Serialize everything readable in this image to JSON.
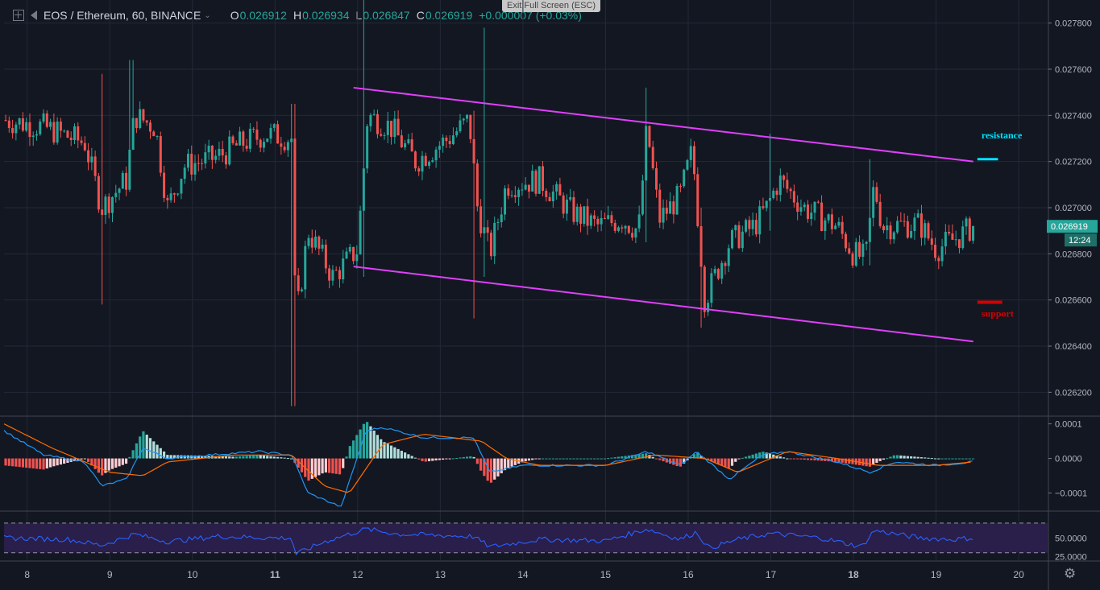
{
  "header": {
    "symbol": "EOS / Ethereum, 60, BINANCE",
    "open_label": "O",
    "open": "0.026912",
    "high_label": "H",
    "high": "0.026934",
    "low_label": "L",
    "low": "0.026847",
    "close_label": "C",
    "close": "0.026919",
    "change": "+0.000007 (+0.03%)"
  },
  "exit_fullscreen": "Exit Full Screen (ESC)",
  "icons": {
    "settings": "gear-icon",
    "add": "plus-square-icon",
    "collapse": "collapse-arrow-icon"
  },
  "colors": {
    "up": "#26a69a",
    "down": "#ef5350",
    "channel": "#e040fb",
    "resistance": "#00e5ff",
    "support": "#d50000",
    "macd": "#2196f3",
    "signal": "#ff6d00",
    "rsi": "#2962ff"
  },
  "chart_data": [
    {
      "type": "candlestick",
      "ylim": [
        0.0261,
        0.0279
      ],
      "yticks": [
        "0.027800",
        "0.027600",
        "0.027400",
        "0.027200",
        "0.027000",
        "0.026800",
        "0.026600",
        "0.026400",
        "0.026200"
      ],
      "xticks": [
        {
          "label": "8",
          "day": 8
        },
        {
          "label": "9",
          "day": 9
        },
        {
          "label": "10",
          "day": 10
        },
        {
          "label": "11",
          "day": 11
        },
        {
          "label": "12",
          "day": 12
        },
        {
          "label": "13",
          "day": 13
        },
        {
          "label": "14",
          "day": 14
        },
        {
          "label": "15",
          "day": 15
        },
        {
          "label": "16",
          "day": 16
        },
        {
          "label": "17",
          "day": 17
        },
        {
          "label": "18",
          "day": 18
        },
        {
          "label": "19",
          "day": 19
        },
        {
          "label": "20",
          "day": 20
        }
      ],
      "xlim_days": [
        7.72,
        20.35
      ],
      "anchors": [
        [
          7.72,
          0.02738
        ],
        [
          8.2,
          0.02735
        ],
        [
          8.7,
          0.02728
        ],
        [
          8.9,
          0.027
        ],
        [
          9.2,
          0.02712
        ],
        [
          9.3,
          0.0274
        ],
        [
          9.55,
          0.02735
        ],
        [
          9.7,
          0.027
        ],
        [
          9.9,
          0.02718
        ],
        [
          10.3,
          0.02722
        ],
        [
          10.6,
          0.02728
        ],
        [
          10.9,
          0.02732
        ],
        [
          11.2,
          0.0273
        ],
        [
          11.25,
          0.0265
        ],
        [
          11.4,
          0.0269
        ],
        [
          11.7,
          0.0267
        ],
        [
          12.0,
          0.02682
        ],
        [
          12.12,
          0.0274
        ],
        [
          12.4,
          0.02735
        ],
        [
          12.7,
          0.0272
        ],
        [
          13.1,
          0.0273
        ],
        [
          13.35,
          0.02738
        ],
        [
          13.45,
          0.027
        ],
        [
          13.6,
          0.0268
        ],
        [
          13.8,
          0.0271
        ],
        [
          14.2,
          0.02712
        ],
        [
          14.6,
          0.02698
        ],
        [
          14.9,
          0.02692
        ],
        [
          15.2,
          0.02695
        ],
        [
          15.4,
          0.0269
        ],
        [
          15.5,
          0.02735
        ],
        [
          15.65,
          0.02695
        ],
        [
          15.9,
          0.02705
        ],
        [
          16.05,
          0.02725
        ],
        [
          16.2,
          0.0266
        ],
        [
          16.5,
          0.02685
        ],
        [
          16.8,
          0.02692
        ],
        [
          16.95,
          0.027
        ],
        [
          17.1,
          0.02712
        ],
        [
          17.4,
          0.027
        ],
        [
          17.8,
          0.02692
        ],
        [
          18.0,
          0.0268
        ],
        [
          18.15,
          0.02678
        ],
        [
          18.25,
          0.0271
        ],
        [
          18.35,
          0.02692
        ],
        [
          18.8,
          0.02693
        ],
        [
          19.0,
          0.02682
        ],
        [
          19.3,
          0.02688
        ],
        [
          19.45,
          0.02692
        ]
      ],
      "spikes": [
        {
          "day": 9.26,
          "high": 0.02764,
          "low": 0.02728
        },
        {
          "day": 8.92,
          "high": 0.02758,
          "low": 0.02658
        },
        {
          "day": 11.22,
          "high": 0.02745,
          "low": 0.02614
        },
        {
          "day": 12.08,
          "high": 0.02798,
          "low": 0.0267
        },
        {
          "day": 13.52,
          "high": 0.02778,
          "low": 0.0267
        },
        {
          "day": 13.42,
          "high": 0.02742,
          "low": 0.02652
        },
        {
          "day": 15.48,
          "high": 0.02752,
          "low": 0.02685
        },
        {
          "day": 16.17,
          "high": 0.027,
          "low": 0.02648
        },
        {
          "day": 16.98,
          "high": 0.02732,
          "low": 0.0269
        },
        {
          "day": 18.2,
          "high": 0.02721,
          "low": 0.02675
        }
      ],
      "last_price_label": "0.026919",
      "countdown_label": "12:24",
      "last_price": 0.026919,
      "channel_upper": [
        {
          "day": 11.95,
          "price": 0.02752
        },
        {
          "day": 19.45,
          "price": 0.0272
        }
      ],
      "channel_lower": [
        {
          "day": 11.95,
          "price": 0.026745
        },
        {
          "day": 19.45,
          "price": 0.02642
        }
      ],
      "resistance": {
        "label": "resistance",
        "price": 0.02721,
        "from_day": 19.5,
        "to_day": 19.75
      },
      "support": {
        "label": "support",
        "price": 0.02659,
        "from_day": 19.5,
        "to_day": 19.8
      }
    },
    {
      "type": "macd",
      "ylim": [
        -0.00015,
        0.00012
      ],
      "yticks": [
        {
          "label": "0.0001",
          "value": 0.0001
        },
        {
          "label": "0.0000",
          "value": 0
        },
        {
          "label": "−0.0001",
          "value": -0.0001
        }
      ],
      "macd_anchors": [
        [
          7.72,
          8e-05
        ],
        [
          8.2,
          1e-05
        ],
        [
          8.7,
          -1e-05
        ],
        [
          8.9,
          -8e-05
        ],
        [
          9.2,
          -6e-05
        ],
        [
          9.4,
          3e-05
        ],
        [
          9.7,
          0.0
        ],
        [
          10.2,
          1e-05
        ],
        [
          10.8,
          2e-05
        ],
        [
          11.2,
          1e-05
        ],
        [
          11.4,
          -0.0001
        ],
        [
          11.8,
          -0.00014
        ],
        [
          12.1,
          8e-05
        ],
        [
          12.3,
          9e-05
        ],
        [
          12.8,
          6e-05
        ],
        [
          13.4,
          6e-05
        ],
        [
          13.6,
          -4e-05
        ],
        [
          14.0,
          -2e-05
        ],
        [
          15.0,
          -2e-05
        ],
        [
          15.5,
          2e-05
        ],
        [
          15.9,
          -2e-05
        ],
        [
          16.1,
          2e-05
        ],
        [
          16.5,
          -6e-05
        ],
        [
          16.9,
          1e-05
        ],
        [
          17.2,
          2e-05
        ],
        [
          17.8,
          -1e-05
        ],
        [
          18.2,
          -4e-05
        ],
        [
          18.5,
          -1e-05
        ],
        [
          19.0,
          -2e-05
        ],
        [
          19.45,
          -1e-05
        ]
      ],
      "signal_anchors": [
        [
          7.72,
          0.0001
        ],
        [
          8.3,
          3e-05
        ],
        [
          9.0,
          -4e-05
        ],
        [
          9.4,
          -5e-05
        ],
        [
          9.7,
          -1e-05
        ],
        [
          10.5,
          1e-05
        ],
        [
          11.2,
          1e-05
        ],
        [
          11.6,
          -8e-05
        ],
        [
          11.9,
          -0.0001
        ],
        [
          12.3,
          4e-05
        ],
        [
          12.8,
          7e-05
        ],
        [
          13.5,
          5e-05
        ],
        [
          13.8,
          0.0
        ],
        [
          14.2,
          -2e-05
        ],
        [
          15.0,
          -2e-05
        ],
        [
          15.6,
          1e-05
        ],
        [
          16.2,
          0.0
        ],
        [
          16.6,
          -4e-05
        ],
        [
          17.2,
          2e-05
        ],
        [
          17.8,
          0.0
        ],
        [
          18.3,
          -2e-05
        ],
        [
          19.0,
          -2e-05
        ],
        [
          19.45,
          -1e-05
        ]
      ]
    },
    {
      "type": "rsi",
      "ylim": [
        20,
        85
      ],
      "upper_band": 70,
      "lower_band": 30,
      "yticks": [
        {
          "label": "50.0000",
          "value": 50
        },
        {
          "label": "25.0000",
          "value": 25
        }
      ],
      "anchors": [
        [
          7.72,
          50
        ],
        [
          8.5,
          48
        ],
        [
          8.9,
          40
        ],
        [
          9.3,
          55
        ],
        [
          9.7,
          45
        ],
        [
          10.3,
          52
        ],
        [
          11.0,
          50
        ],
        [
          11.2,
          50
        ],
        [
          11.25,
          28
        ],
        [
          11.6,
          45
        ],
        [
          12.1,
          62
        ],
        [
          12.5,
          55
        ],
        [
          13.4,
          52
        ],
        [
          13.6,
          38
        ],
        [
          14.2,
          48
        ],
        [
          15.0,
          46
        ],
        [
          15.5,
          62
        ],
        [
          15.9,
          48
        ],
        [
          16.1,
          58
        ],
        [
          16.25,
          36
        ],
        [
          16.6,
          48
        ],
        [
          17.0,
          56
        ],
        [
          17.6,
          50
        ],
        [
          18.1,
          38
        ],
        [
          18.25,
          60
        ],
        [
          18.8,
          50
        ],
        [
          19.2,
          48
        ],
        [
          19.45,
          50
        ]
      ]
    }
  ]
}
